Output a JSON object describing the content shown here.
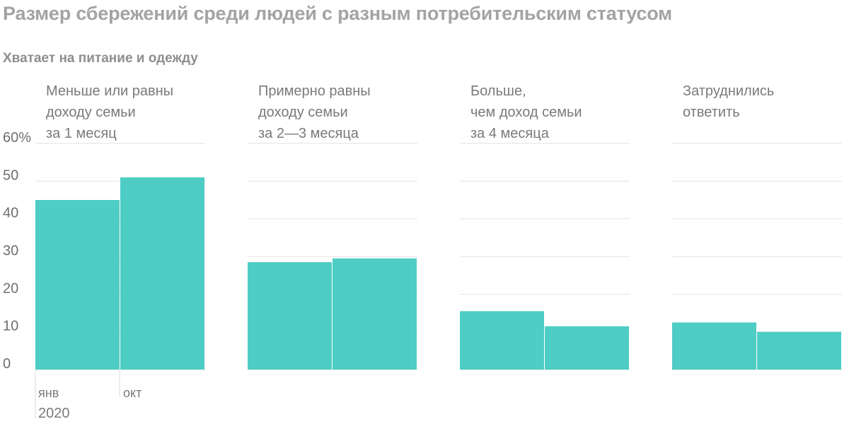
{
  "title": "Размер сбережений среди людей с разным потребительским статусом",
  "subtitle": "Хватает на питание и одежду",
  "colors": {
    "bar": "#4ecdc4",
    "grid": "#e2e2e2",
    "text": "#7a7a7a"
  },
  "chart_data": {
    "type": "bar",
    "y_tick_labels": [
      "60%",
      "50",
      "40",
      "30",
      "20",
      "10",
      "0"
    ],
    "ylim": [
      0,
      60
    ],
    "x_labels": {
      "first": "янв",
      "year": "2020",
      "second": "окт"
    },
    "panels": [
      {
        "label_lines": [
          "Меньше или равны",
          "доходу семьи",
          "за 1 месяц"
        ],
        "values": [
          45,
          51
        ]
      },
      {
        "label_lines": [
          "Примерно равны",
          "доходу семьи",
          "за 2—3 месяца"
        ],
        "values": [
          28.5,
          29.5
        ]
      },
      {
        "label_lines": [
          "Больше,",
          "чем доход семьи",
          "за 4 месяца"
        ],
        "values": [
          15.5,
          11.5
        ]
      },
      {
        "label_lines": [
          "Затруднились",
          "ответить"
        ],
        "values": [
          12.5,
          10
        ]
      }
    ]
  }
}
